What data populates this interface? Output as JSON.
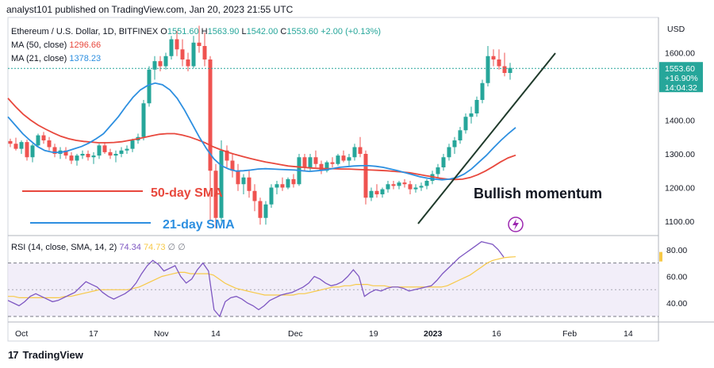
{
  "header": "analyst101 published on TradingView.com, Jan 20, 2023 21:55 UTC",
  "footer": {
    "brand": "TradingView",
    "logo": "17"
  },
  "colors": {
    "up": "#26a69a",
    "down": "#ef5350",
    "ma50": "#e8483d",
    "ma21": "#2d8fe0",
    "rsi": "#7e57c2",
    "rsi_ma": "#f7c948",
    "trend": "#1f3a2b",
    "rsi_band": "#ede7f6"
  },
  "chart_data": [
    {
      "type": "candlestick",
      "title": "Ethereum / U.S. Dollar, 1D, BITFINEX",
      "ohlc_label": {
        "o": "O1551.60",
        "h": "H1563.90",
        "l": "L1542.00",
        "c": "C1553.60",
        "chg": "+2.00 (+0.13%)"
      },
      "currency": "USD",
      "y_ticks": [
        "1100.00",
        "1200.00",
        "1300.00",
        "1400.00",
        "1500.00",
        "1600.00"
      ],
      "ylim": [
        1060,
        1700
      ],
      "x_ticks": [
        "Oct",
        "17",
        "Nov",
        "14",
        "Dec",
        "19",
        "2023",
        "16",
        "Feb",
        "14"
      ],
      "last_price": {
        "value": "1553.60",
        "change": "+16.90%",
        "countdown": "14:04:32"
      },
      "candles": [
        [
          1338,
          1345,
          1320,
          1330
        ],
        [
          1330,
          1348,
          1310,
          1315
        ],
        [
          1315,
          1340,
          1300,
          1335
        ],
        [
          1335,
          1342,
          1280,
          1290
        ],
        [
          1290,
          1330,
          1275,
          1325
        ],
        [
          1325,
          1360,
          1320,
          1355
        ],
        [
          1355,
          1365,
          1330,
          1340
        ],
        [
          1340,
          1350,
          1310,
          1320
        ],
        [
          1320,
          1330,
          1290,
          1300
        ],
        [
          1300,
          1320,
          1285,
          1310
        ],
        [
          1310,
          1320,
          1285,
          1295
        ],
        [
          1295,
          1305,
          1270,
          1280
        ],
        [
          1280,
          1300,
          1265,
          1295
        ],
        [
          1295,
          1310,
          1285,
          1300
        ],
        [
          1300,
          1310,
          1280,
          1290
        ],
        [
          1290,
          1305,
          1270,
          1295
        ],
        [
          1295,
          1330,
          1285,
          1325
        ],
        [
          1325,
          1335,
          1300,
          1305
        ],
        [
          1305,
          1315,
          1285,
          1295
        ],
        [
          1295,
          1310,
          1275,
          1300
        ],
        [
          1300,
          1320,
          1290,
          1310
        ],
        [
          1310,
          1325,
          1300,
          1315
        ],
        [
          1315,
          1345,
          1305,
          1340
        ],
        [
          1340,
          1360,
          1330,
          1350
        ],
        [
          1350,
          1460,
          1340,
          1450
        ],
        [
          1450,
          1560,
          1440,
          1550
        ],
        [
          1550,
          1590,
          1520,
          1575
        ],
        [
          1575,
          1590,
          1545,
          1560
        ],
        [
          1560,
          1600,
          1550,
          1590
        ],
        [
          1590,
          1650,
          1580,
          1640
        ],
        [
          1640,
          1665,
          1590,
          1610
        ],
        [
          1610,
          1640,
          1560,
          1580
        ],
        [
          1580,
          1600,
          1545,
          1560
        ],
        [
          1560,
          1650,
          1555,
          1630
        ],
        [
          1630,
          1680,
          1600,
          1620
        ],
        [
          1620,
          1660,
          1560,
          1580
        ],
        [
          1580,
          1590,
          1100,
          1250
        ],
        [
          1250,
          1270,
          1080,
          1110
        ],
        [
          1110,
          1340,
          1100,
          1310
        ],
        [
          1310,
          1325,
          1260,
          1280
        ],
        [
          1280,
          1300,
          1230,
          1250
        ],
        [
          1250,
          1270,
          1190,
          1210
        ],
        [
          1210,
          1240,
          1180,
          1230
        ],
        [
          1230,
          1250,
          1170,
          1190
        ],
        [
          1190,
          1210,
          1130,
          1160
        ],
        [
          1160,
          1170,
          1090,
          1110
        ],
        [
          1110,
          1160,
          1090,
          1150
        ],
        [
          1150,
          1210,
          1140,
          1200
        ],
        [
          1200,
          1220,
          1180,
          1210
        ],
        [
          1210,
          1230,
          1190,
          1200
        ],
        [
          1200,
          1230,
          1195,
          1225
        ],
        [
          1225,
          1240,
          1200,
          1210
        ],
        [
          1210,
          1300,
          1205,
          1290
        ],
        [
          1290,
          1300,
          1250,
          1260
        ],
        [
          1260,
          1300,
          1250,
          1290
        ],
        [
          1290,
          1310,
          1260,
          1270
        ],
        [
          1270,
          1280,
          1240,
          1250
        ],
        [
          1250,
          1280,
          1245,
          1275
        ],
        [
          1275,
          1290,
          1260,
          1270
        ],
        [
          1270,
          1300,
          1265,
          1295
        ],
        [
          1295,
          1310,
          1275,
          1280
        ],
        [
          1280,
          1300,
          1265,
          1290
        ],
        [
          1290,
          1330,
          1280,
          1320
        ],
        [
          1320,
          1350,
          1290,
          1300
        ],
        [
          1300,
          1310,
          1150,
          1170
        ],
        [
          1170,
          1200,
          1160,
          1190
        ],
        [
          1190,
          1210,
          1170,
          1180
        ],
        [
          1180,
          1200,
          1170,
          1195
        ],
        [
          1195,
          1220,
          1185,
          1210
        ],
        [
          1210,
          1220,
          1195,
          1205
        ],
        [
          1205,
          1220,
          1195,
          1215
        ],
        [
          1215,
          1225,
          1200,
          1210
        ],
        [
          1210,
          1220,
          1180,
          1195
        ],
        [
          1195,
          1210,
          1185,
          1200
        ],
        [
          1200,
          1215,
          1190,
          1205
        ],
        [
          1205,
          1225,
          1195,
          1220
        ],
        [
          1220,
          1250,
          1210,
          1240
        ],
        [
          1240,
          1270,
          1230,
          1260
        ],
        [
          1260,
          1300,
          1250,
          1290
        ],
        [
          1290,
          1330,
          1280,
          1320
        ],
        [
          1320,
          1350,
          1300,
          1340
        ],
        [
          1340,
          1380,
          1330,
          1370
        ],
        [
          1370,
          1420,
          1360,
          1410
        ],
        [
          1410,
          1440,
          1390,
          1420
        ],
        [
          1420,
          1470,
          1410,
          1460
        ],
        [
          1460,
          1520,
          1450,
          1510
        ],
        [
          1510,
          1620,
          1500,
          1590
        ],
        [
          1590,
          1610,
          1560,
          1580
        ],
        [
          1580,
          1610,
          1550,
          1560
        ],
        [
          1560,
          1600,
          1530,
          1540
        ],
        [
          1540,
          1570,
          1520,
          1555
        ]
      ],
      "series": [
        {
          "name": "MA (50, close)",
          "value_label": "1296.66",
          "values": [
            1465,
            1440,
            1418,
            1400,
            1385,
            1373,
            1362,
            1352,
            1345,
            1340,
            1337,
            1335,
            1333,
            1333,
            1334,
            1336,
            1340,
            1344,
            1349,
            1354,
            1358,
            1360,
            1360,
            1356,
            1350,
            1342,
            1333,
            1322,
            1313,
            1305,
            1298,
            1292,
            1286,
            1281,
            1276,
            1272,
            1268,
            1264,
            1262,
            1260,
            1258,
            1257,
            1256,
            1256,
            1255,
            1255,
            1254,
            1253,
            1252,
            1251,
            1250,
            1248,
            1246,
            1244,
            1240,
            1236,
            1232,
            1228,
            1225,
            1224,
            1225,
            1230,
            1238,
            1249,
            1262,
            1276,
            1288,
            1296
          ]
        },
        {
          "name": "MA (21, close)",
          "value_label": "1378.23",
          "values": [
            1410,
            1385,
            1360,
            1340,
            1322,
            1310,
            1305,
            1304,
            1308,
            1315,
            1322,
            1332,
            1345,
            1360,
            1385,
            1410,
            1440,
            1468,
            1490,
            1503,
            1510,
            1505,
            1490,
            1465,
            1430,
            1390,
            1350,
            1315,
            1285,
            1265,
            1255,
            1249,
            1250,
            1252,
            1255,
            1256,
            1255,
            1254,
            1253,
            1252,
            1250,
            1248,
            1250,
            1252,
            1256,
            1260,
            1262,
            1264,
            1265,
            1265,
            1263,
            1260,
            1255,
            1250,
            1244,
            1238,
            1232,
            1228,
            1225,
            1223,
            1225,
            1230,
            1240,
            1255,
            1275,
            1295,
            1318,
            1340,
            1360,
            1378
          ]
        }
      ],
      "annotations": [
        "50-day SMA",
        "21-day SMA",
        "Bullish momentum"
      ]
    },
    {
      "type": "line",
      "title": "RSI (14, close, SMA, 14, 2)",
      "y_ticks": [
        "40.00",
        "60.00",
        "80.00"
      ],
      "ylim": [
        27,
        90
      ],
      "band": [
        30,
        70
      ],
      "series": [
        {
          "name": "RSI",
          "value_label": "74.34",
          "values": [
            42,
            40,
            38,
            41,
            45,
            47,
            45,
            43,
            41,
            42,
            44,
            46,
            48,
            52,
            56,
            54,
            52,
            48,
            45,
            43,
            45,
            47,
            50,
            55,
            62,
            68,
            72,
            69,
            64,
            66,
            68,
            60,
            55,
            58,
            65,
            70,
            64,
            35,
            30,
            41,
            44,
            45,
            43,
            40,
            38,
            35,
            38,
            42,
            44,
            46,
            47,
            48,
            50,
            52,
            55,
            60,
            58,
            55,
            53,
            54,
            56,
            60,
            65,
            60,
            45,
            48,
            50,
            49,
            51,
            52,
            52,
            51,
            49,
            50,
            51,
            52,
            53,
            57,
            62,
            66,
            70,
            74,
            77,
            80,
            83,
            86,
            85,
            84,
            80,
            74.34
          ]
        },
        {
          "name": "RSI MA",
          "value_label": "74.73",
          "values": [
            45,
            45,
            44,
            44,
            44,
            44,
            44,
            44,
            44,
            44,
            45,
            45,
            46,
            47,
            48,
            49,
            50,
            50,
            50,
            50,
            50,
            50,
            51,
            52,
            54,
            56,
            58,
            60,
            61,
            62,
            63,
            63,
            62,
            62,
            62,
            62,
            61,
            58,
            55,
            53,
            51,
            50,
            49,
            48,
            47,
            46,
            46,
            46,
            46,
            46,
            46,
            47,
            47,
            48,
            49,
            50,
            51,
            52,
            52,
            53,
            53,
            54,
            54,
            54,
            53,
            53,
            53,
            52,
            52,
            52,
            52,
            52,
            52,
            52,
            52,
            52,
            52,
            53,
            55,
            57,
            59,
            61,
            64,
            67,
            70,
            72,
            73,
            74,
            74.5,
            74.73
          ]
        }
      ]
    }
  ]
}
